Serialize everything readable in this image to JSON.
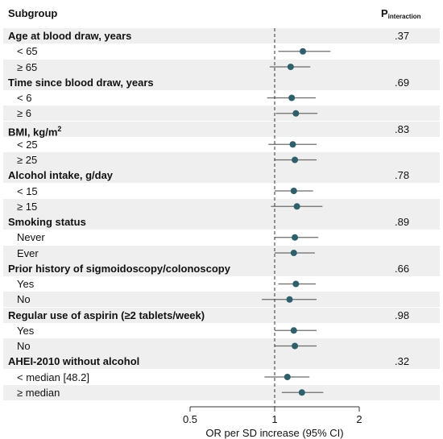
{
  "header": {
    "subgroup_label": "Subgroup",
    "p_label": "P",
    "p_subscript": "interaction"
  },
  "colors": {
    "point": "#2f5f6a",
    "ci": "#6b6b6b",
    "ref_line": "#333333",
    "shade": "#efefef"
  },
  "chart_data": {
    "type": "forest",
    "xlabel": "OR per SD increase (95% CI)",
    "x_scale": "log",
    "xlim": [
      0.5,
      2
    ],
    "ticks": [
      0.5,
      1,
      2
    ],
    "tick_labels": [
      "0.5",
      "1",
      "2"
    ],
    "reference_line": 1,
    "groups": [
      {
        "label": "Age at blood draw, years",
        "label_sup": "",
        "p": ".37",
        "subgroups": [
          {
            "label": "< 65",
            "or": 1.26,
            "lo": 1.03,
            "hi": 1.58
          },
          {
            "label": "≥ 65",
            "or": 1.14,
            "lo": 0.96,
            "hi": 1.34
          }
        ]
      },
      {
        "label": "Time since blood draw, years",
        "label_sup": "",
        "p": ".69",
        "subgroups": [
          {
            "label": "< 6",
            "or": 1.15,
            "lo": 0.94,
            "hi": 1.4
          },
          {
            "label": "≥ 6",
            "or": 1.19,
            "lo": 1.01,
            "hi": 1.42
          }
        ]
      },
      {
        "label": "BMI, kg/m",
        "label_sup": "2",
        "p": ".83",
        "subgroups": [
          {
            "label": "< 25",
            "or": 1.16,
            "lo": 0.95,
            "hi": 1.41
          },
          {
            "label": "≥ 25",
            "or": 1.18,
            "lo": 1.0,
            "hi": 1.41
          }
        ]
      },
      {
        "label": "Alcohol intake, g/day",
        "label_sup": "",
        "p": ".78",
        "subgroups": [
          {
            "label": "< 15",
            "or": 1.17,
            "lo": 1.0,
            "hi": 1.37
          },
          {
            "label": "≥ 15",
            "or": 1.2,
            "lo": 0.97,
            "hi": 1.48
          }
        ]
      },
      {
        "label": "Smoking status",
        "label_sup": "",
        "p": ".89",
        "subgroups": [
          {
            "label": "Never",
            "or": 1.18,
            "lo": 1.0,
            "hi": 1.43
          },
          {
            "label": "Ever",
            "or": 1.17,
            "lo": 1.0,
            "hi": 1.39
          }
        ]
      },
      {
        "label": "Prior history of sigmoidoscopy/colonoscopy",
        "label_sup": "",
        "p": ".66",
        "subgroups": [
          {
            "label": "Yes",
            "or": 1.19,
            "lo": 1.03,
            "hi": 1.4
          },
          {
            "label": "No",
            "or": 1.13,
            "lo": 0.9,
            "hi": 1.41
          }
        ]
      },
      {
        "label": "Regular use of aspirin (≥2 tablets/week)",
        "label_sup": "",
        "p": ".98",
        "subgroups": [
          {
            "label": "Yes",
            "or": 1.17,
            "lo": 1.0,
            "hi": 1.41
          },
          {
            "label": "No",
            "or": 1.18,
            "lo": 1.0,
            "hi": 1.41
          }
        ]
      },
      {
        "label": "AHEI-2010 without alcohol",
        "label_sup": "",
        "p": ".32",
        "subgroups": [
          {
            "label": "< median [48.2]",
            "or": 1.11,
            "lo": 0.92,
            "hi": 1.33
          },
          {
            "label": "≥ median",
            "or": 1.25,
            "lo": 1.06,
            "hi": 1.49
          }
        ]
      }
    ]
  }
}
